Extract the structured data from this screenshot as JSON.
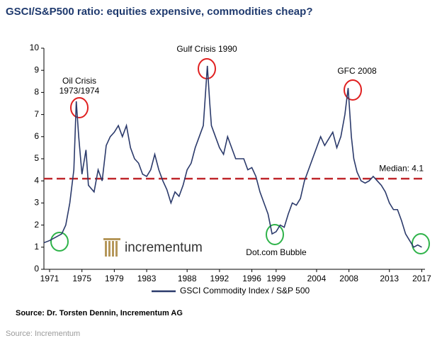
{
  "chart_data": {
    "type": "line",
    "title": "GSCI/S&P500 ratio: equities expensive, commodities cheap?",
    "x": [
      1970.3,
      1971,
      1971.5,
      1972,
      1972.5,
      1973,
      1973.5,
      1974,
      1974.3,
      1974.6,
      1975,
      1975.5,
      1975.8,
      1976.5,
      1977,
      1977.5,
      1978,
      1978.5,
      1979,
      1979.5,
      1980,
      1980.5,
      1981,
      1981.5,
      1982,
      1982.5,
      1983,
      1983.5,
      1984,
      1984.5,
      1985,
      1985.5,
      1986,
      1986.5,
      1987,
      1987.5,
      1988,
      1988.5,
      1989,
      1989.5,
      1990,
      1990.5,
      1990.8,
      1991,
      1991.5,
      1992,
      1992.5,
      1993,
      1993.5,
      1994,
      1995,
      1995.5,
      1996,
      1996.5,
      1997,
      1997.5,
      1998,
      1998.5,
      1999,
      1999.5,
      2000,
      2000.5,
      2001,
      2001.5,
      2002,
      2002.5,
      2003,
      2003.5,
      2004,
      2004.5,
      2005,
      2005.5,
      2006,
      2006.5,
      2007,
      2007.5,
      2007.9,
      2008.3,
      2008.6,
      2009,
      2009.5,
      2010,
      2010.5,
      2011,
      2011.5,
      2012,
      2012.5,
      2013,
      2013.5,
      2014,
      2014.5,
      2015,
      2015.5,
      2016,
      2016.5,
      2017
    ],
    "series": [
      {
        "name": "GSCI Commodity Index / S&P 500",
        "color": "#2b3a6b",
        "values": [
          1.2,
          1.3,
          1.4,
          1.5,
          1.6,
          2.0,
          3.0,
          4.5,
          7.6,
          6.0,
          4.3,
          5.4,
          3.8,
          3.5,
          4.5,
          4.0,
          5.6,
          6.0,
          6.2,
          6.5,
          6.0,
          6.5,
          5.5,
          5.0,
          4.8,
          4.3,
          4.2,
          4.5,
          5.2,
          4.5,
          4.0,
          3.6,
          3.0,
          3.5,
          3.3,
          3.8,
          4.5,
          4.8,
          5.5,
          6.0,
          6.5,
          9.2,
          7.5,
          6.5,
          6.0,
          5.5,
          5.2,
          6.0,
          5.5,
          5.0,
          5.0,
          4.5,
          4.6,
          4.2,
          3.5,
          3.0,
          2.5,
          1.6,
          1.7,
          2.0,
          1.9,
          2.5,
          3.0,
          2.9,
          3.2,
          4.0,
          4.5,
          5.0,
          5.5,
          6.0,
          5.6,
          5.9,
          6.2,
          5.5,
          6.0,
          7.0,
          8.2,
          6.0,
          5.0,
          4.4,
          4.0,
          3.9,
          4.0,
          4.2,
          4.0,
          3.8,
          3.5,
          3.0,
          2.7,
          2.7,
          2.2,
          1.6,
          1.3,
          1.0,
          1.1,
          1.0
        ]
      }
    ],
    "xlim": [
      1970.3,
      2017.4
    ],
    "xticks": [
      1971,
      1975,
      1979,
      1983,
      1988,
      1992,
      1996,
      1999,
      2004,
      2008,
      2013,
      2017
    ],
    "ylim": [
      0,
      10
    ],
    "yticks": [
      0,
      1,
      2,
      3,
      4,
      5,
      6,
      7,
      8,
      9,
      10
    ],
    "median": 4.1,
    "median_label": "Median: 4.1",
    "median_color": "#c0282d",
    "annotations": [
      "Oil Crisis",
      "1973/1974",
      "Gulf Crisis 1990",
      "GFC 2008",
      "Dot.com Bubble"
    ],
    "logo": "incrementum",
    "source": "Source: Dr. Torsten Dennin, Incrementum AG",
    "caption": "Source: Incrementum"
  }
}
